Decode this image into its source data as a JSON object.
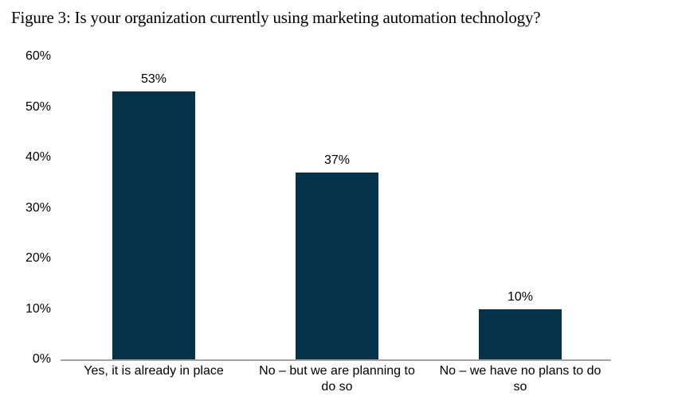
{
  "title": "Figure 3: Is your organization currently using marketing automation technology?",
  "chart_data": {
    "type": "bar",
    "title": "Figure 3: Is your organization currently using marketing automation technology?",
    "categories": [
      "Yes, it is already in place",
      "No – but we are planning to do so",
      "No – we have no plans to do so"
    ],
    "category_lines": [
      [
        "Yes, it is already in place"
      ],
      [
        "No – but we are planning to",
        "do so"
      ],
      [
        "No – we have no plans to do",
        "so"
      ]
    ],
    "values": [
      53,
      37,
      10
    ],
    "value_labels": [
      "53%",
      "37%",
      "10%"
    ],
    "xlabel": "",
    "ylabel": "",
    "ylim": [
      0,
      60
    ],
    "yticks": [
      0,
      10,
      20,
      30,
      40,
      50,
      60
    ],
    "ytick_labels": [
      "0%",
      "10%",
      "20%",
      "30%",
      "40%",
      "50%",
      "60%"
    ],
    "grid": false,
    "legend": null,
    "bar_color": "#05334a",
    "axis_line_color": "#a3a3a3",
    "text_color": "#000000"
  }
}
